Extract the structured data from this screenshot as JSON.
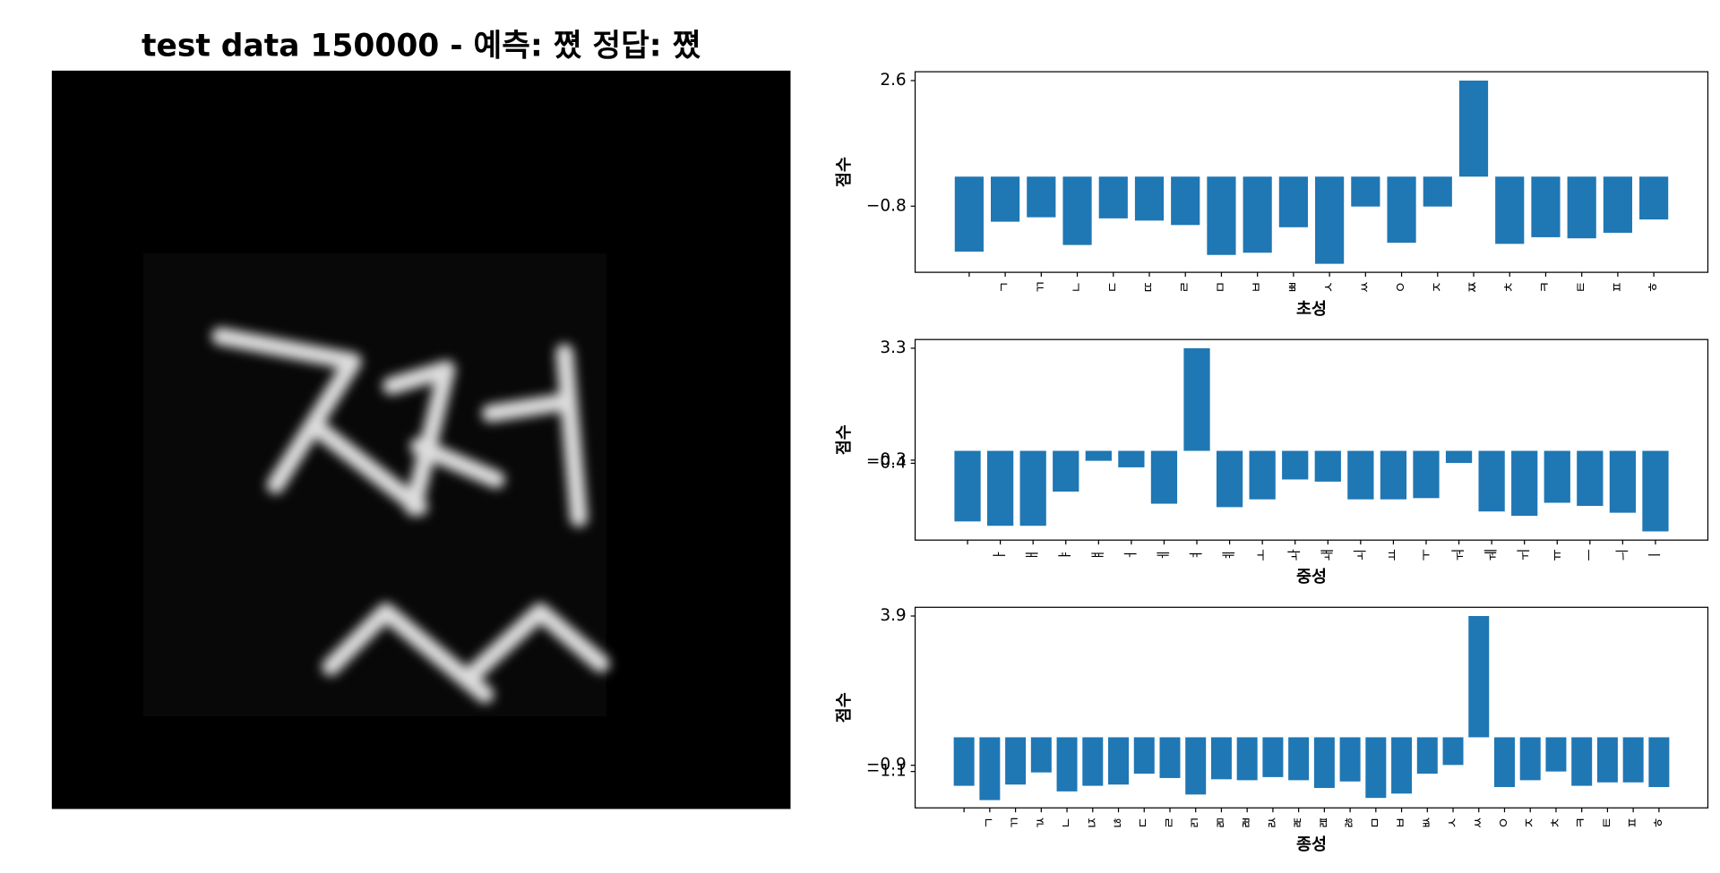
{
  "chart_data": [
    {
      "type": "image",
      "title": "test data 150000 - 예측: 쪘 정답: 쪘"
    },
    {
      "type": "bar",
      "xlabel": "초성",
      "ylabel": "점수",
      "color": "#1f77b4",
      "categories": [
        null,
        "ㄱ",
        "ㄲ",
        "ㄴ",
        "ㄷ",
        "ㄸ",
        "ㄹ",
        "ㅁ",
        "ㅂ",
        "ㅃ",
        "ㅅ",
        "ㅆ",
        "ㅇ",
        "ㅈ",
        "ㅉ",
        "ㅊ",
        "ㅋ",
        "ㅌ",
        "ㅍ",
        "ㅎ"
      ],
      "values": [
        -2.03,
        -1.22,
        -1.1,
        -1.85,
        -1.13,
        -1.19,
        -1.31,
        -2.12,
        -2.06,
        -1.37,
        -2.36,
        -0.81,
        -1.79,
        -0.81,
        2.6,
        -1.82,
        -1.64,
        -1.67,
        -1.52,
        -1.16
      ],
      "ylim": [
        -2.59,
        2.84
      ],
      "yticks": [
        {
          "value": -0.8,
          "label": "−0.8"
        },
        2.6
      ]
    },
    {
      "type": "bar",
      "xlabel": "중성",
      "ylabel": "점수",
      "color": "#1f77b4",
      "categories": [
        null,
        "ㅏ",
        "ㅐ",
        "ㅑ",
        "ㅒ",
        "ㅓ",
        "ㅔ",
        "ㅕ",
        "ㅖ",
        "ㅗ",
        "ㅘ",
        "ㅙ",
        "ㅚ",
        "ㅛ",
        "ㅜ",
        "ㅝ",
        "ㅞ",
        "ㅟ",
        "ㅠ",
        "ㅡ",
        "ㅢ",
        "ㅣ"
      ],
      "values": [
        -2.27,
        -2.41,
        -2.41,
        -1.31,
        -0.32,
        -0.53,
        -1.7,
        3.3,
        -1.81,
        -1.56,
        -0.92,
        -0.99,
        -1.56,
        -1.56,
        -1.52,
        -0.39,
        -1.95,
        -2.09,
        -1.67,
        -1.77,
        -1.99,
        -2.59
      ],
      "ylim": [
        -2.87,
        3.58
      ],
      "yticks": [
        {
          "value": -0.4,
          "label": "−0.4"
        },
        {
          "value": -0.3,
          "label": "−0.3"
        },
        3.3
      ]
    },
    {
      "type": "bar",
      "xlabel": "종성",
      "ylabel": "점수",
      "color": "#1f77b4",
      "categories": [
        null,
        "ㄱ",
        "ㄲ",
        "ㄳ",
        "ㄴ",
        "ㄵ",
        "ㄶ",
        "ㄷ",
        "ㄹ",
        "ㄺ",
        "ㄻ",
        "ㄼ",
        "ㄽ",
        "ㄾ",
        "ㄿ",
        "ㅀ",
        "ㅁ",
        "ㅂ",
        "ㅄ",
        "ㅅ",
        "ㅆ",
        "ㅇ",
        "ㅈ",
        "ㅊ",
        "ㅋ",
        "ㅌ",
        "ㅍ",
        "ㅎ"
      ],
      "values": [
        -1.56,
        -2.02,
        -1.52,
        -1.13,
        -1.74,
        -1.56,
        -1.52,
        -1.17,
        -1.31,
        -1.84,
        -1.35,
        -1.38,
        -1.28,
        -1.38,
        -1.63,
        -1.42,
        -1.95,
        -1.81,
        -1.17,
        -0.89,
        3.9,
        -1.6,
        -1.38,
        -1.1,
        -1.56,
        -1.45,
        -1.45,
        -1.6
      ],
      "ylim": [
        -2.27,
        4.18
      ],
      "yticks": [
        {
          "value": -1.1,
          "label": "−1.1"
        },
        {
          "value": -0.9,
          "label": "−0.9"
        },
        3.9
      ]
    }
  ]
}
